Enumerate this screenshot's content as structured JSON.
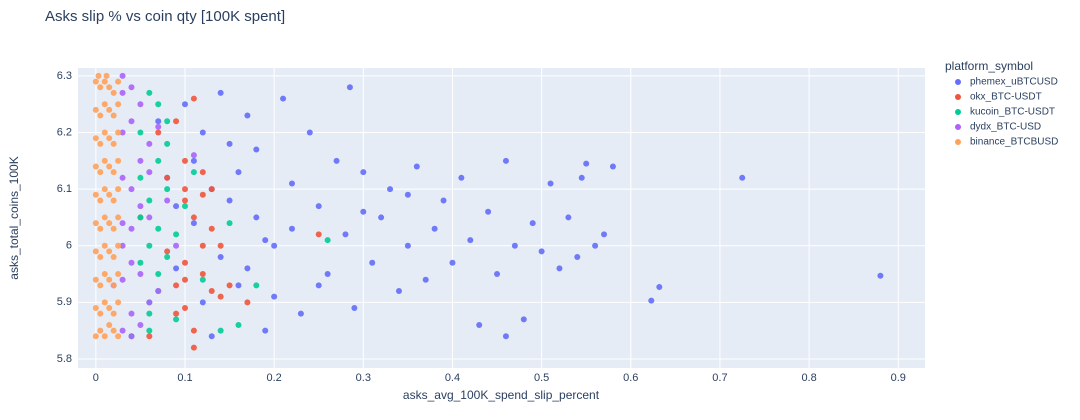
{
  "chart_data": {
    "type": "scatter",
    "title": "Asks slip % vs coin qty [100K spent]",
    "x_label": "asks_avg_100K_spend_slip_percent",
    "y_label": "asks_total_coins_100K",
    "legend_title": "platform_symbol",
    "xlim": [
      -0.02,
      0.93
    ],
    "ylim": [
      5.784,
      6.314
    ],
    "xticks": [
      0,
      0.1,
      0.2,
      0.3,
      0.4,
      0.5,
      0.6,
      0.7,
      0.8,
      0.9
    ],
    "yticks": [
      5.8,
      5.9,
      6,
      6.1,
      6.2,
      6.3
    ],
    "grid": true,
    "series": [
      {
        "name": "phemex_uBTCUSD",
        "color": "#636efa",
        "x": [
          0.88,
          0.725,
          0.632,
          0.623,
          0.58,
          0.57,
          0.56,
          0.55,
          0.545,
          0.54,
          0.53,
          0.52,
          0.51,
          0.5,
          0.49,
          0.48,
          0.47,
          0.46,
          0.45,
          0.44,
          0.43,
          0.42,
          0.41,
          0.4,
          0.39,
          0.38,
          0.37,
          0.36,
          0.35,
          0.34,
          0.33,
          0.32,
          0.31,
          0.3,
          0.29,
          0.285,
          0.28,
          0.27,
          0.26,
          0.25,
          0.24,
          0.23,
          0.22,
          0.21,
          0.2,
          0.19,
          0.18,
          0.17,
          0.16,
          0.15,
          0.14,
          0.13,
          0.12,
          0.11,
          0.1,
          0.09,
          0.08,
          0.07,
          0.2,
          0.18,
          0.16,
          0.14,
          0.22,
          0.25,
          0.3,
          0.35,
          0.46,
          0.12,
          0.15,
          0.17,
          0.13,
          0.19,
          0.11,
          0.09
        ],
        "values": [
          5.947,
          6.12,
          5.927,
          5.903,
          6.14,
          6.02,
          6.0,
          6.145,
          6.12,
          5.98,
          6.05,
          5.96,
          6.11,
          5.99,
          6.04,
          5.87,
          6.0,
          6.15,
          5.95,
          6.06,
          5.86,
          6.01,
          6.12,
          5.97,
          6.08,
          6.03,
          5.94,
          6.14,
          6.0,
          5.92,
          6.1,
          6.05,
          5.97,
          6.13,
          5.89,
          6.28,
          6.02,
          6.15,
          5.95,
          6.07,
          6.2,
          5.88,
          6.11,
          6.26,
          6.0,
          5.85,
          6.17,
          6.23,
          5.93,
          6.08,
          6.27,
          5.84,
          6.2,
          6.04,
          6.25,
          5.96,
          6.12,
          6.22,
          5.91,
          6.05,
          6.13,
          5.98,
          6.03,
          5.93,
          6.06,
          6.09,
          5.84,
          5.9,
          6.18,
          5.96,
          6.1,
          6.01,
          6.15,
          6.07
        ]
      },
      {
        "name": "okx_BTC-USDT",
        "color": "#EF553B",
        "x": [
          0.1,
          0.12,
          0.11,
          0.13,
          0.09,
          0.1,
          0.14,
          0.08,
          0.12,
          0.11,
          0.1,
          0.13,
          0.07,
          0.09,
          0.12,
          0.15,
          0.11,
          0.06,
          0.1,
          0.13,
          0.08,
          0.25,
          0.17,
          0.11,
          0.09,
          0.12,
          0.1,
          0.05,
          0.14,
          0.1
        ],
        "values": [
          6.1,
          6.09,
          6.05,
          5.92,
          5.93,
          5.97,
          5.91,
          6.12,
          6.0,
          5.85,
          6.15,
          6.03,
          6.2,
          5.88,
          5.95,
          5.93,
          6.26,
          5.84,
          6.08,
          6.1,
          5.99,
          6.02,
          5.9,
          5.82,
          6.22,
          6.13,
          5.89,
          6.05,
          6.0,
          5.94
        ]
      },
      {
        "name": "kucoin_BTC-USDT",
        "color": "#00cc96",
        "x": [
          0.06,
          0.07,
          0.05,
          0.08,
          0.06,
          0.09,
          0.07,
          0.05,
          0.06,
          0.08,
          0.1,
          0.07,
          0.06,
          0.12,
          0.05,
          0.08,
          0.26,
          0.18,
          0.15,
          0.07,
          0.06,
          0.09,
          0.05,
          0.08,
          0.07,
          0.14,
          0.11,
          0.06,
          0.04,
          0.16
        ],
        "values": [
          6.0,
          5.95,
          6.05,
          6.1,
          5.9,
          6.02,
          6.15,
          6.2,
          5.88,
          5.98,
          6.07,
          6.25,
          5.85,
          5.94,
          6.12,
          6.18,
          6.01,
          5.93,
          6.04,
          5.92,
          6.08,
          5.87,
          5.97,
          6.22,
          6.03,
          5.85,
          6.13,
          6.27,
          5.84,
          5.86
        ]
      },
      {
        "name": "dydx_BTC-USD",
        "color": "#ab63fa",
        "x": [
          0.03,
          0.04,
          0.05,
          0.03,
          0.06,
          0.04,
          0.03,
          0.05,
          0.07,
          0.04,
          0.03,
          0.06,
          0.05,
          0.04,
          0.08,
          0.03,
          0.05,
          0.04,
          0.06,
          0.03,
          0.09,
          0.04,
          0.05,
          0.03,
          0.06,
          0.04,
          0.11,
          0.03,
          0.02,
          0.07
        ],
        "values": [
          6.0,
          6.1,
          5.95,
          6.2,
          6.05,
          5.88,
          6.27,
          6.15,
          5.92,
          6.03,
          5.85,
          6.18,
          6.25,
          5.97,
          6.08,
          6.12,
          5.86,
          6.22,
          5.9,
          5.94,
          6.0,
          6.28,
          6.07,
          6.04,
          6.13,
          5.84,
          6.16,
          6.3,
          5.93,
          6.21
        ]
      },
      {
        "name": "binance_BTCBUSD",
        "color": "#FFA15A",
        "x": [
          0,
          0.005,
          0.01,
          0.015,
          0.02,
          0.025,
          0,
          0.005,
          0.01,
          0.015,
          0.02,
          0.025,
          0,
          0.005,
          0.01,
          0.015,
          0.02,
          0.025,
          0,
          0.005,
          0.01,
          0.015,
          0.02,
          0.025,
          0,
          0.005,
          0.01,
          0.015,
          0.02,
          0.025,
          0,
          0.005,
          0.01,
          0.015,
          0.02,
          0.025,
          0,
          0.005,
          0.01,
          0.015,
          0.02,
          0.025,
          0,
          0.005,
          0.01,
          0.015,
          0.02,
          0.025,
          0,
          0.005,
          0.01,
          0.015,
          0.02,
          0.025,
          0,
          0.005,
          0.01,
          0.015,
          0.02,
          0.025,
          0.003,
          0.012
        ],
        "values": [
          5.84,
          5.85,
          5.84,
          5.86,
          5.85,
          5.84,
          5.89,
          5.88,
          5.9,
          5.89,
          5.88,
          5.9,
          5.94,
          5.93,
          5.95,
          5.94,
          5.93,
          5.95,
          5.99,
          5.98,
          6.0,
          5.99,
          5.98,
          6.0,
          6.04,
          6.03,
          6.05,
          6.04,
          6.03,
          6.05,
          6.09,
          6.08,
          6.1,
          6.09,
          6.08,
          6.1,
          6.14,
          6.13,
          6.15,
          6.14,
          6.13,
          6.15,
          6.19,
          6.18,
          6.2,
          6.19,
          6.18,
          6.2,
          6.24,
          6.23,
          6.25,
          6.24,
          6.23,
          6.25,
          6.29,
          6.28,
          6.29,
          6.28,
          6.27,
          6.29,
          6.3,
          6.3
        ]
      }
    ]
  }
}
